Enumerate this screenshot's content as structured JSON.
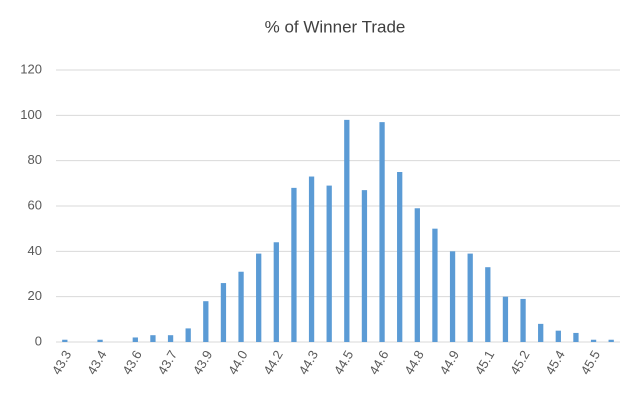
{
  "chart_data": {
    "type": "bar",
    "title": "% of Winner Trade",
    "categories": [
      "43.3",
      null,
      "43.4",
      null,
      "43.6",
      null,
      "43.7",
      null,
      "43.9",
      null,
      "44.0",
      null,
      "44.2",
      null,
      "44.3",
      null,
      "44.5",
      null,
      "44.6",
      null,
      "44.8",
      null,
      "44.9",
      null,
      "45.1",
      null,
      "45.2",
      null,
      "45.4",
      null,
      "45.5",
      null
    ],
    "values": [
      1,
      0,
      1,
      0,
      2,
      3,
      3,
      6,
      18,
      26,
      31,
      39,
      44,
      68,
      73,
      69,
      98,
      67,
      97,
      75,
      59,
      50,
      40,
      39,
      33,
      20,
      19,
      8,
      5,
      4,
      1,
      1
    ],
    "color": "#5b9bd5",
    "ylim": [
      0,
      120
    ],
    "yticks": [
      0,
      20,
      40,
      60,
      80,
      100,
      120
    ],
    "grid": true
  }
}
